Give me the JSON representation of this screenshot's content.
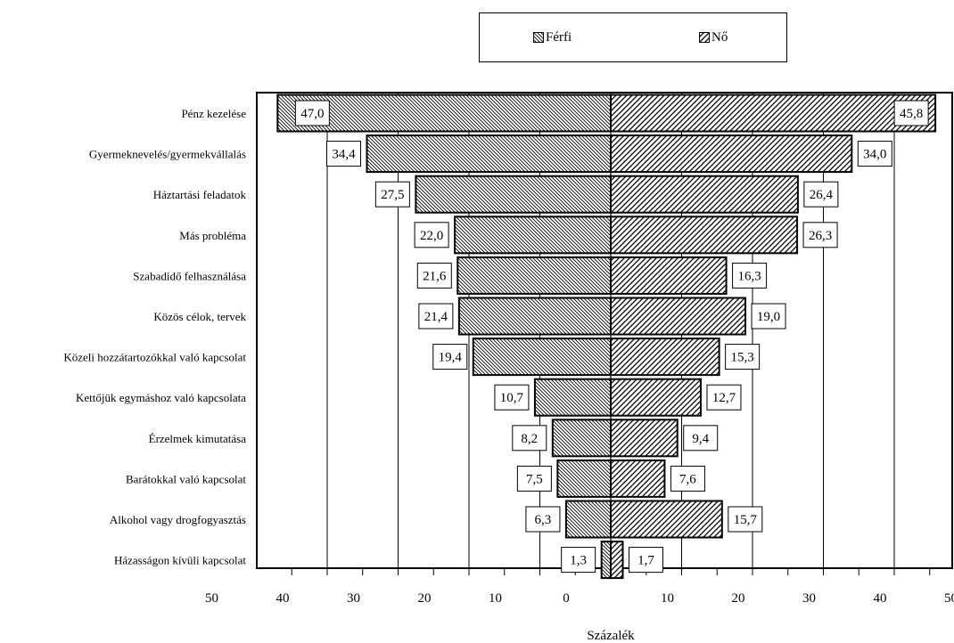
{
  "chart_data": {
    "type": "bar",
    "orientation": "horizontal-diverging",
    "categories": [
      "Pénz kezelése",
      "Gyermeknevelés/gyermekvállalás",
      "Háztartási feladatok",
      "Más probléma",
      "Szabadidő felhasználása",
      "Közös célok, tervek",
      "Közeli hozzátartozókkal való kapcsolat",
      "Kettőjük egymáshoz való kapcsolata",
      "Érzelmek kimutatása",
      "Barátokkal való kapcsolat",
      "Alkohol vagy drogfogyasztás",
      "Házasságon kívüli kapcsolat"
    ],
    "series": [
      {
        "name": "Férfi",
        "side": "left",
        "values": [
          47.0,
          34.4,
          27.5,
          22.0,
          21.6,
          21.4,
          19.4,
          10.7,
          8.2,
          7.5,
          6.3,
          1.3
        ],
        "labels": [
          "47,0",
          "34,4",
          "27,5",
          "22,0",
          "21,6",
          "21,4",
          "19,4",
          "10,7",
          "8,2",
          "7,5",
          "6,3",
          "1,3"
        ],
        "pattern": "backslash-hatch"
      },
      {
        "name": "Nő",
        "side": "right",
        "values": [
          45.8,
          34.0,
          26.4,
          26.3,
          16.3,
          19.0,
          15.3,
          12.7,
          9.4,
          7.6,
          15.7,
          1.7
        ],
        "labels": [
          "45,8",
          "34,0",
          "26,4",
          "26,3",
          "16,3",
          "19,0",
          "15,3",
          "12,7",
          "9,4",
          "7,6",
          "15,7",
          "1,7"
        ],
        "pattern": "slash-hatch"
      }
    ],
    "x_ticks_left": [
      "50",
      "40",
      "30",
      "20",
      "10",
      "0"
    ],
    "x_ticks_right": [
      "10",
      "20",
      "30",
      "40",
      "50"
    ],
    "xlabel": "Százalék",
    "xlim": [
      0,
      50
    ],
    "grid": "vertical",
    "legend_position": "top"
  }
}
